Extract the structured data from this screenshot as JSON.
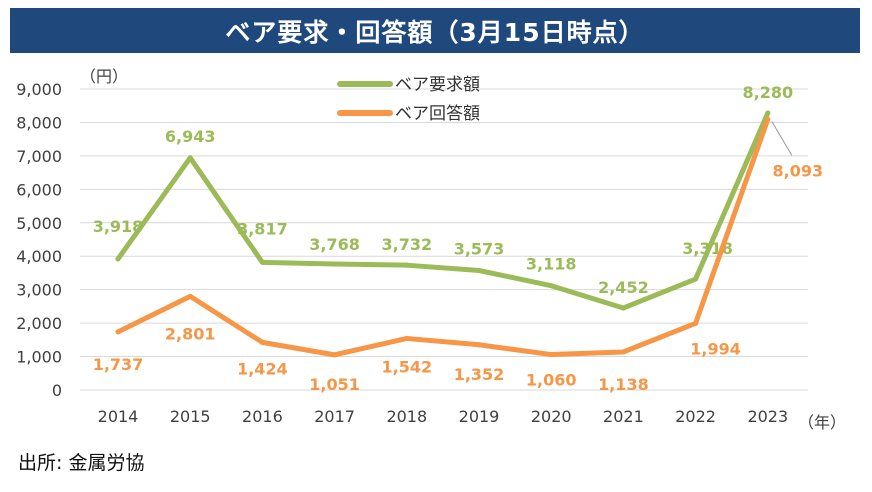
{
  "title": "ベア要求・回答額（3月15日時点）",
  "source": "出所: 金属労協",
  "chart_data": {
    "type": "line",
    "title": "ベア要求・回答額（3月15日時点）",
    "ylabel": "（円）",
    "xlabel": "（年）",
    "ylim": [
      0,
      9000
    ],
    "yticks": [
      0,
      1000,
      2000,
      3000,
      4000,
      5000,
      6000,
      7000,
      8000,
      9000
    ],
    "ytick_labels": [
      "0",
      "1,000",
      "2,000",
      "3,000",
      "4,000",
      "5,000",
      "6,000",
      "7,000",
      "8,000",
      "9,000"
    ],
    "categories": [
      "2014",
      "2015",
      "2016",
      "2017",
      "2018",
      "2019",
      "2020",
      "2021",
      "2022",
      "2023"
    ],
    "grid": true,
    "legend_position": "top-center",
    "series": [
      {
        "name": "ベア要求額",
        "color": "#9bbb59",
        "values": [
          3918,
          6943,
          3817,
          3768,
          3732,
          3573,
          3118,
          2452,
          3318,
          8280
        ],
        "labels": [
          "3,918",
          "6,943",
          "3,817",
          "3,768",
          "3,732",
          "3,573",
          "3,118",
          "2,452",
          "3,318",
          "8,280"
        ]
      },
      {
        "name": "ベア回答額",
        "color": "#f79646",
        "values": [
          1737,
          2801,
          1424,
          1051,
          1542,
          1352,
          1060,
          1138,
          1994,
          8093
        ],
        "labels": [
          "1,737",
          "2,801",
          "1,424",
          "1,051",
          "1,542",
          "1,352",
          "1,060",
          "1,138",
          "1,994",
          "8,093"
        ]
      }
    ]
  }
}
